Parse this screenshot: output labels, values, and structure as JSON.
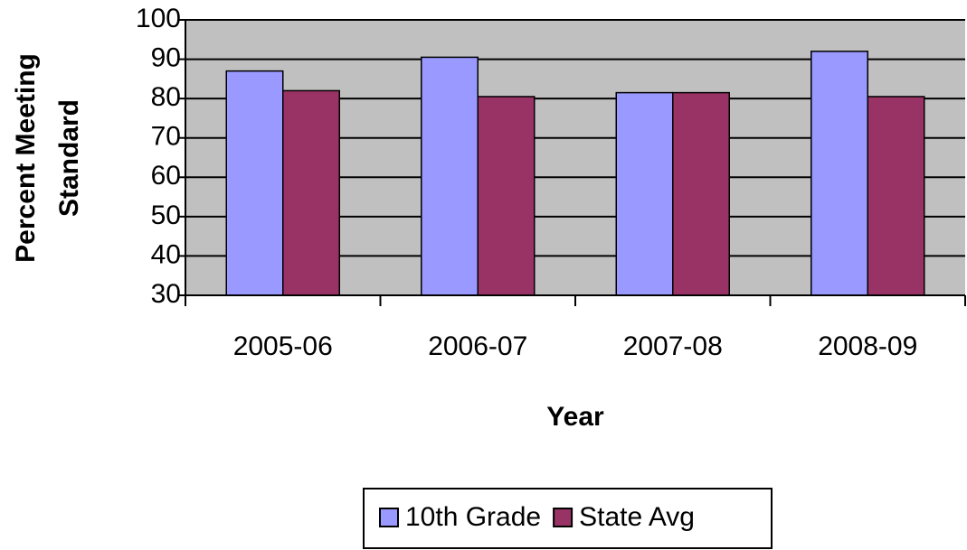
{
  "chart_data": {
    "type": "bar",
    "ylabel": [
      "Percent Meeting",
      "Standard"
    ],
    "xlabel": "Year",
    "categories": [
      "2005-06",
      "2006-07",
      "2007-08",
      "2008-09"
    ],
    "series": [
      {
        "name": "10th Grade",
        "color": "#9999ff",
        "values": [
          87,
          90.5,
          81.5,
          92
        ]
      },
      {
        "name": "State Avg",
        "color": "#993366",
        "values": [
          82,
          80.5,
          81.5,
          80.5
        ]
      }
    ],
    "ylim": [
      30,
      100
    ],
    "yticks": [
      30,
      40,
      50,
      60,
      70,
      80,
      90,
      100
    ],
    "grid": true,
    "legend": "bottom"
  }
}
